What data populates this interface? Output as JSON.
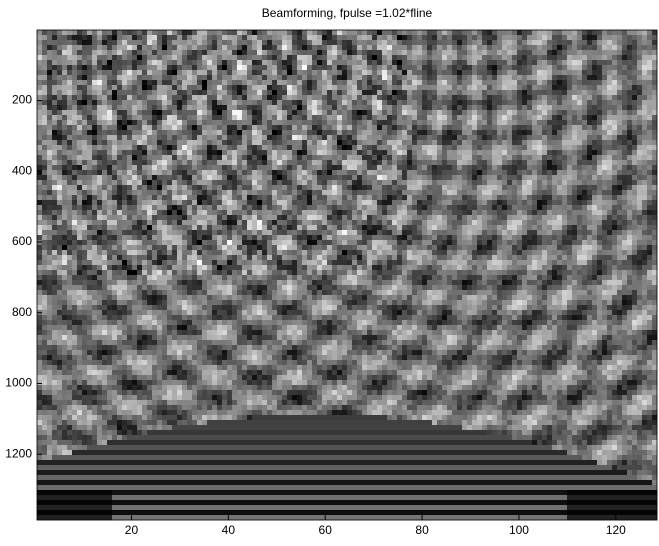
{
  "chart_data": {
    "type": "image",
    "title": "Beamforming, fpulse =1.02*fline",
    "xlim": [
      0.5,
      128.5
    ],
    "xticks": [
      20,
      40,
      60,
      80,
      100,
      120
    ],
    "ylim": [
      0.5,
      1386
    ],
    "yticks": [
      200,
      400,
      600,
      800,
      1000,
      1200
    ],
    "y_reversed": true,
    "colormap": "gray"
  }
}
